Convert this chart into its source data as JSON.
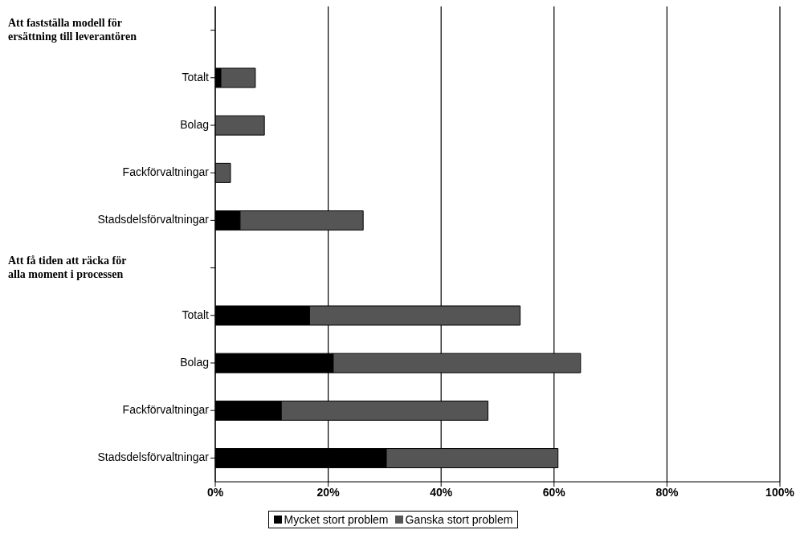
{
  "chart_data": {
    "type": "bar",
    "orientation": "horizontal",
    "stacked": true,
    "categories": [
      null,
      "Totalt",
      "Bolag",
      "Fackförvaltningar",
      "Stadsdelsförvaltningar",
      null,
      "Totalt",
      "Bolag",
      "Fackförvaltningar",
      "Stadsdelsförvaltningar"
    ],
    "annotations": [
      "Att fastställa modell för ersättning till leverantören",
      "Att få tiden att räcka för alla moment i processen"
    ],
    "series": [
      {
        "name": "Mycket stort problem",
        "color": "#000000",
        "values": [
          null,
          1,
          0,
          0,
          4.4,
          null,
          16.7,
          20.9,
          11.7,
          30.3
        ]
      },
      {
        "name": "Ganska stort problem",
        "color": "#555555",
        "values": [
          null,
          6.1,
          8.7,
          2.7,
          21.8,
          null,
          37.3,
          43.8,
          36.6,
          30.4
        ]
      }
    ],
    "xlim": [
      0,
      100
    ],
    "xticks": [
      {
        "value": 0,
        "label": "0%"
      },
      {
        "value": 20,
        "label": "20%"
      },
      {
        "value": 40,
        "label": "40%"
      },
      {
        "value": 60,
        "label": "60%"
      },
      {
        "value": 80,
        "label": "80%"
      },
      {
        "value": 100,
        "label": "100%"
      }
    ],
    "grid": "x",
    "legend": "bottom"
  }
}
